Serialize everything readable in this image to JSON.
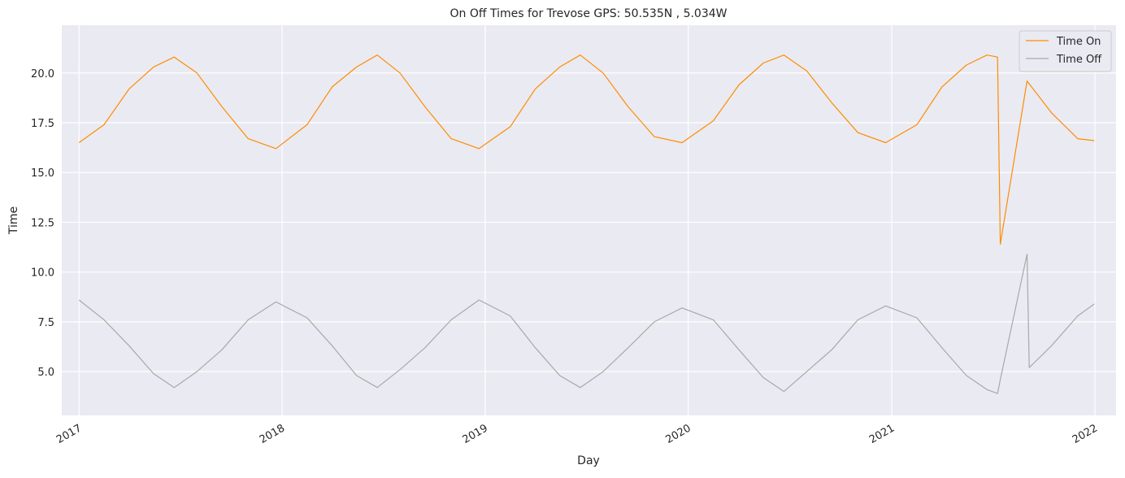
{
  "chart_data": {
    "type": "line",
    "title": "On Off Times for Trevose  GPS: 50.535N , 5.034W",
    "xlabel": "Day",
    "ylabel": "Time",
    "x_tick_labels": [
      "2017",
      "2018",
      "2019",
      "2020",
      "2021",
      "2022"
    ],
    "y_tick_labels": [
      "5.0",
      "7.5",
      "10.0",
      "12.5",
      "15.0",
      "17.5",
      "20.0"
    ],
    "y_ticks": [
      5.0,
      7.5,
      10.0,
      12.5,
      15.0,
      17.5,
      20.0
    ],
    "x_range": [
      "2016-12-01",
      "2022-02-08"
    ],
    "ylim": [
      2.8,
      22.4
    ],
    "grid": true,
    "legend_position": "top-right",
    "series": [
      {
        "name": "Time On",
        "color": "#ff8c00",
        "points": [
          [
            "2017-01-01",
            16.5
          ],
          [
            "2017-02-15",
            17.4
          ],
          [
            "2017-04-01",
            19.2
          ],
          [
            "2017-05-15",
            20.3
          ],
          [
            "2017-06-21",
            20.8
          ],
          [
            "2017-08-01",
            20.0
          ],
          [
            "2017-09-15",
            18.3
          ],
          [
            "2017-11-01",
            16.7
          ],
          [
            "2017-12-21",
            16.2
          ],
          [
            "2018-02-15",
            17.4
          ],
          [
            "2018-04-01",
            19.3
          ],
          [
            "2018-05-15",
            20.3
          ],
          [
            "2018-06-21",
            20.9
          ],
          [
            "2018-08-01",
            20.0
          ],
          [
            "2018-09-15",
            18.3
          ],
          [
            "2018-11-01",
            16.7
          ],
          [
            "2018-12-21",
            16.2
          ],
          [
            "2019-02-15",
            17.3
          ],
          [
            "2019-04-01",
            19.2
          ],
          [
            "2019-05-15",
            20.3
          ],
          [
            "2019-06-21",
            20.9
          ],
          [
            "2019-08-01",
            20.0
          ],
          [
            "2019-09-15",
            18.3
          ],
          [
            "2019-11-01",
            16.8
          ],
          [
            "2019-12-21",
            16.5
          ],
          [
            "2020-02-15",
            17.6
          ],
          [
            "2020-04-01",
            19.4
          ],
          [
            "2020-05-15",
            20.5
          ],
          [
            "2020-06-21",
            20.9
          ],
          [
            "2020-08-01",
            20.1
          ],
          [
            "2020-09-15",
            18.5
          ],
          [
            "2020-11-01",
            17.0
          ],
          [
            "2020-12-21",
            16.5
          ],
          [
            "2021-02-15",
            17.4
          ],
          [
            "2021-04-01",
            19.3
          ],
          [
            "2021-05-15",
            20.4
          ],
          [
            "2021-06-21",
            20.9
          ],
          [
            "2021-07-10",
            20.8
          ],
          [
            "2021-07-15",
            11.4
          ],
          [
            "2021-09-01",
            19.6
          ],
          [
            "2021-10-15",
            18.0
          ],
          [
            "2021-12-01",
            16.7
          ],
          [
            "2021-12-31",
            16.6
          ]
        ]
      },
      {
        "name": "Time Off",
        "color": "#a9a9a9",
        "points": [
          [
            "2017-01-01",
            8.6
          ],
          [
            "2017-02-15",
            7.6
          ],
          [
            "2017-04-01",
            6.3
          ],
          [
            "2017-05-15",
            4.9
          ],
          [
            "2017-06-21",
            4.2
          ],
          [
            "2017-08-01",
            5.0
          ],
          [
            "2017-09-15",
            6.1
          ],
          [
            "2017-11-01",
            7.6
          ],
          [
            "2017-12-21",
            8.5
          ],
          [
            "2018-02-15",
            7.7
          ],
          [
            "2018-04-01",
            6.3
          ],
          [
            "2018-05-15",
            4.8
          ],
          [
            "2018-06-21",
            4.2
          ],
          [
            "2018-08-01",
            5.1
          ],
          [
            "2018-09-15",
            6.2
          ],
          [
            "2018-11-01",
            7.6
          ],
          [
            "2018-12-21",
            8.6
          ],
          [
            "2019-02-15",
            7.8
          ],
          [
            "2019-04-01",
            6.2
          ],
          [
            "2019-05-15",
            4.8
          ],
          [
            "2019-06-21",
            4.2
          ],
          [
            "2019-08-01",
            5.0
          ],
          [
            "2019-09-15",
            6.2
          ],
          [
            "2019-11-01",
            7.5
          ],
          [
            "2019-12-21",
            8.2
          ],
          [
            "2020-02-15",
            7.6
          ],
          [
            "2020-04-01",
            6.1
          ],
          [
            "2020-05-15",
            4.7
          ],
          [
            "2020-06-21",
            4.0
          ],
          [
            "2020-08-01",
            5.0
          ],
          [
            "2020-09-15",
            6.1
          ],
          [
            "2020-11-01",
            7.6
          ],
          [
            "2020-12-21",
            8.3
          ],
          [
            "2021-02-15",
            7.7
          ],
          [
            "2021-04-01",
            6.2
          ],
          [
            "2021-05-15",
            4.8
          ],
          [
            "2021-06-21",
            4.1
          ],
          [
            "2021-07-10",
            3.9
          ],
          [
            "2021-07-15",
            4.6
          ],
          [
            "2021-09-01",
            10.9
          ],
          [
            "2021-09-05",
            5.2
          ],
          [
            "2021-10-15",
            6.3
          ],
          [
            "2021-12-01",
            7.8
          ],
          [
            "2021-12-31",
            8.4
          ]
        ]
      }
    ]
  }
}
